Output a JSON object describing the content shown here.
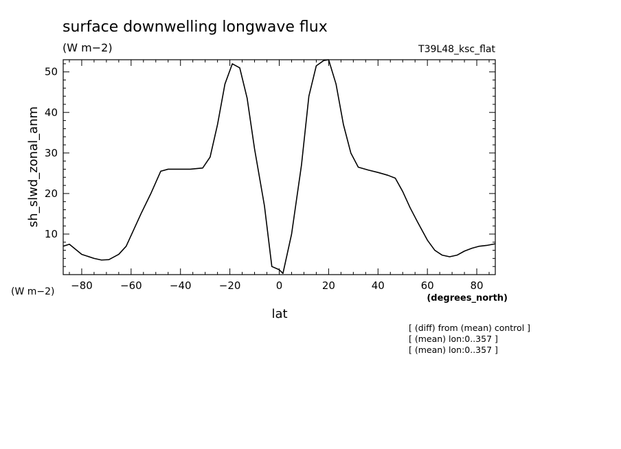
{
  "chart_data": {
    "type": "line",
    "title": "surface downwelling longwave flux",
    "title_units": "(W m−2)",
    "run_label": "T39L48_ksc_flat",
    "ylabel": "sh_slwd_zonal_anm",
    "yunits": "(W m−2)",
    "xlabel": "lat",
    "xunits": "(degrees_north)",
    "xlim": [
      -87.5,
      87.5
    ],
    "ylim": [
      0,
      53
    ],
    "xticks": [
      -80,
      -60,
      -40,
      -20,
      0,
      20,
      40,
      60,
      80
    ],
    "yticks": [
      10,
      20,
      30,
      40,
      50
    ],
    "grid": false,
    "notes": [
      "[ (diff) from (mean) control ]",
      "[ (mean) lon:0..357 ]",
      "[ (mean) lon:0..357 ]"
    ],
    "series": [
      {
        "x": [
          -87.5,
          -85,
          -80,
          -75,
          -72,
          -69,
          -65,
          -62,
          -59,
          -56,
          -52,
          -48,
          -45,
          -42,
          -36,
          -31,
          -28,
          -25,
          -22,
          -19,
          -16,
          -13,
          -10,
          -6,
          -3,
          0,
          1.5,
          5,
          9,
          12,
          15,
          18,
          20,
          23,
          26,
          29,
          32,
          36,
          40,
          44,
          47,
          50,
          53,
          56,
          60,
          63,
          66,
          69,
          72,
          75,
          78,
          81,
          84,
          87.5
        ],
        "y": [
          7,
          7.5,
          5,
          4,
          3.6,
          3.7,
          5,
          7,
          11,
          15,
          20,
          25.5,
          26,
          26,
          26,
          26.3,
          29,
          37,
          47,
          52,
          51,
          43.5,
          31,
          17,
          2,
          1.2,
          0.3,
          10,
          27,
          44,
          51.5,
          52.8,
          53,
          47,
          37,
          30,
          26.5,
          25.8,
          25.2,
          24.5,
          23.8,
          20.5,
          16.5,
          13,
          8.5,
          6,
          4.8,
          4.4,
          4.8,
          5.8,
          6.5,
          7,
          7.2,
          7.6
        ]
      }
    ]
  }
}
